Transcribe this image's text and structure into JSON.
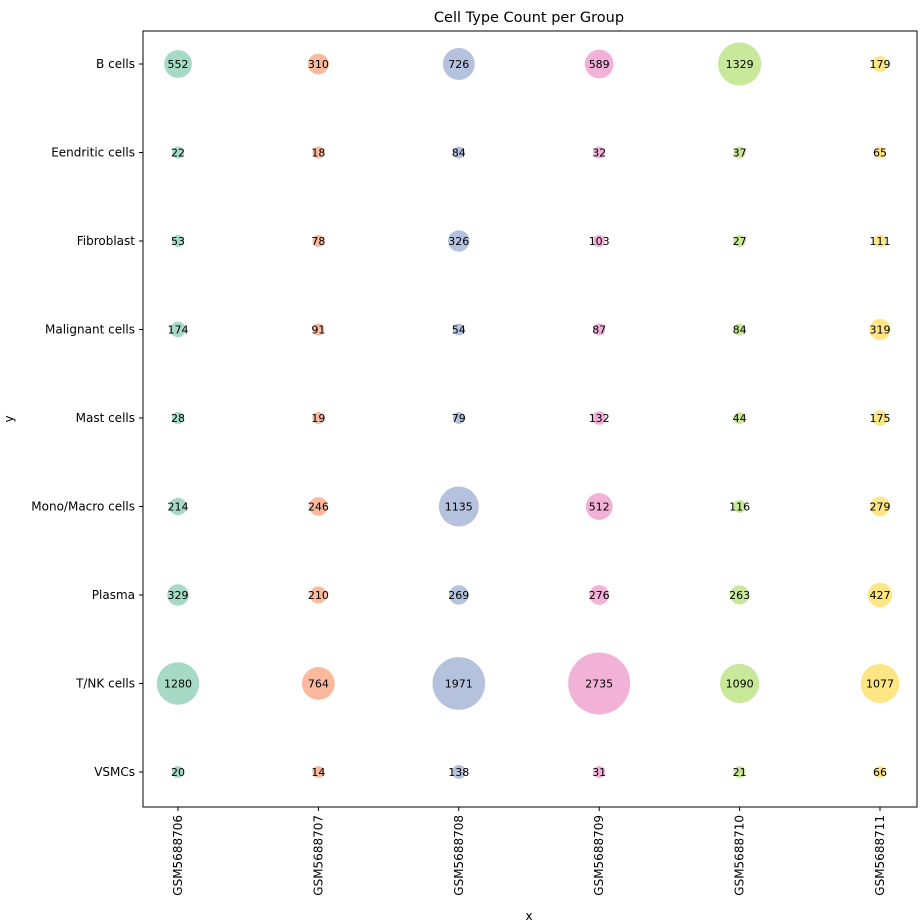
{
  "chart_data": {
    "type": "scatter",
    "title": "Cell Type Count per Group",
    "xlabel": "x",
    "ylabel": "y",
    "categories_x": [
      "GSM5688706",
      "GSM5688707",
      "GSM5688708",
      "GSM5688709",
      "GSM5688710",
      "GSM5688711"
    ],
    "categories_y": [
      "B cells",
      "Eendritic cells",
      "Fibroblast",
      "Malignant cells",
      "Mast cells",
      "Mono/Macro cells",
      "Plasma",
      "T/NK cells",
      "VSMCs"
    ],
    "colors": [
      "#a6d9c6",
      "#fbb99e",
      "#b5c2de",
      "#f2b2d8",
      "#c8e89a",
      "#fde683"
    ],
    "grid": false,
    "legend": "none",
    "values": [
      [
        552,
        310,
        726,
        589,
        1329,
        179
      ],
      [
        22,
        18,
        84,
        32,
        37,
        65
      ],
      [
        53,
        78,
        326,
        103,
        27,
        111
      ],
      [
        174,
        91,
        54,
        87,
        84,
        319
      ],
      [
        28,
        19,
        79,
        132,
        44,
        175
      ],
      [
        214,
        246,
        1135,
        512,
        116,
        279
      ],
      [
        329,
        210,
        269,
        276,
        263,
        427
      ],
      [
        1280,
        764,
        1971,
        2735,
        1090,
        1077
      ],
      [
        20,
        14,
        138,
        31,
        21,
        66
      ]
    ]
  }
}
